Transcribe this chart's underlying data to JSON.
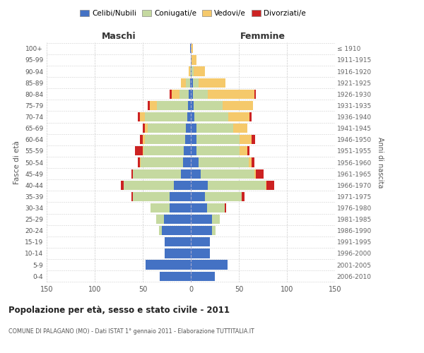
{
  "age_groups": [
    "0-4",
    "5-9",
    "10-14",
    "15-19",
    "20-24",
    "25-29",
    "30-34",
    "35-39",
    "40-44",
    "45-49",
    "50-54",
    "55-59",
    "60-64",
    "65-69",
    "70-74",
    "75-79",
    "80-84",
    "85-89",
    "90-94",
    "95-99",
    "100+"
  ],
  "birth_years": [
    "2006-2010",
    "2001-2005",
    "1996-2000",
    "1991-1995",
    "1986-1990",
    "1981-1985",
    "1976-1980",
    "1971-1975",
    "1966-1970",
    "1961-1965",
    "1956-1960",
    "1951-1955",
    "1946-1950",
    "1941-1945",
    "1936-1940",
    "1931-1935",
    "1926-1930",
    "1921-1925",
    "1916-1920",
    "1911-1915",
    "≤ 1910"
  ],
  "maschi": {
    "celibi": [
      32,
      47,
      27,
      27,
      30,
      28,
      22,
      22,
      18,
      10,
      8,
      7,
      6,
      5,
      4,
      3,
      2,
      1,
      0,
      0,
      1
    ],
    "coniugati": [
      0,
      0,
      0,
      0,
      3,
      8,
      20,
      38,
      52,
      50,
      44,
      42,
      42,
      40,
      44,
      32,
      10,
      4,
      1,
      0,
      0
    ],
    "vedovi": [
      0,
      0,
      0,
      0,
      0,
      0,
      0,
      0,
      0,
      0,
      1,
      1,
      2,
      3,
      5,
      8,
      8,
      5,
      1,
      0,
      0
    ],
    "divorziati": [
      0,
      0,
      0,
      0,
      0,
      0,
      0,
      2,
      3,
      2,
      2,
      8,
      3,
      2,
      2,
      2,
      2,
      0,
      0,
      0,
      0
    ]
  },
  "femmine": {
    "nubili": [
      25,
      38,
      20,
      20,
      22,
      22,
      17,
      15,
      18,
      10,
      8,
      6,
      6,
      6,
      4,
      3,
      2,
      2,
      1,
      1,
      0
    ],
    "coniugate": [
      0,
      0,
      0,
      0,
      4,
      8,
      18,
      38,
      60,
      56,
      52,
      45,
      45,
      38,
      35,
      30,
      16,
      6,
      2,
      0,
      0
    ],
    "vedove": [
      0,
      0,
      0,
      0,
      0,
      0,
      0,
      0,
      1,
      2,
      3,
      8,
      12,
      15,
      22,
      32,
      48,
      28,
      12,
      5,
      2
    ],
    "divorziate": [
      0,
      0,
      0,
      0,
      0,
      0,
      2,
      3,
      8,
      8,
      3,
      2,
      4,
      0,
      2,
      0,
      2,
      0,
      0,
      0,
      0
    ]
  },
  "colors": {
    "celibi": "#4472C4",
    "coniugati": "#C5D9A0",
    "vedovi": "#F5C96B",
    "divorziati": "#CC2222"
  },
  "xlim": 150,
  "title": "Popolazione per età, sesso e stato civile - 2011",
  "subtitle": "COMUNE DI PALAGANO (MO) - Dati ISTAT 1° gennaio 2011 - Elaborazione TUTTITALIA.IT",
  "ylabel_left": "Fasce di età",
  "ylabel_right": "Anni di nascita",
  "xlabel_maschi": "Maschi",
  "xlabel_femmine": "Femmine",
  "legend_labels": [
    "Celibi/Nubili",
    "Coniugati/e",
    "Vedovi/e",
    "Divorziati/e"
  ]
}
